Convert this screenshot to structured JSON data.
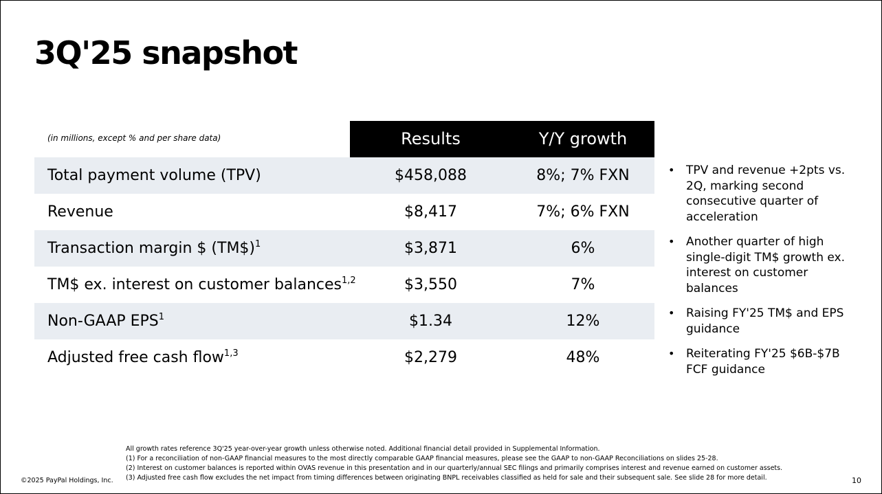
{
  "slide": {
    "title": "3Q'25 snapshot",
    "units_note": "(in millions, except % and per share data)",
    "copyright": "©2025 PayPal Holdings, Inc.",
    "page_number": "10"
  },
  "table": {
    "columns": [
      "Results",
      "Y/Y growth"
    ],
    "rows": [
      {
        "metric": "Total payment volume (TPV)",
        "sup": "",
        "result": "$458,088",
        "growth": "8%; 7% FXN"
      },
      {
        "metric": "Revenue",
        "sup": "",
        "result": "$8,417",
        "growth": "7%; 6% FXN"
      },
      {
        "metric": "Transaction margin $ (TM$)",
        "sup": "1",
        "result": "$3,871",
        "growth": "6%"
      },
      {
        "metric": "TM$ ex. interest on customer balances",
        "sup": "1,2",
        "result": "$3,550",
        "growth": "7%"
      },
      {
        "metric": "Non-GAAP EPS",
        "sup": "1",
        "result": "$1.34",
        "growth": "12%"
      },
      {
        "metric": "Adjusted free cash flow",
        "sup": "1,3",
        "result": "$2,279",
        "growth": "48%"
      }
    ]
  },
  "bullets": [
    "TPV and revenue +2pts vs. 2Q, marking second consecutive quarter of acceleration",
    "Another quarter of high single-digit TM$ growth ex. interest on customer balances",
    "Raising FY'25 TM$ and EPS guidance",
    "Reiterating FY'25 $6B-$7B FCF guidance"
  ],
  "footnotes": [
    "All growth rates reference 3Q'25 year-over-year growth unless otherwise noted. Additional financial detail provided in Supplemental Information.",
    "(1) For a reconciliation of non-GAAP financial measures to the most directly comparable GAAP financial measures, please see the GAAP to non-GAAP Reconciliations on slides 25-28.",
    "(2) Interest on customer balances is reported within OVAS revenue in this presentation and in our quarterly/annual SEC filings and primarily comprises interest and revenue earned on customer assets.",
    "(3) Adjusted free cash flow excludes the net impact from timing differences between originating BNPL receivables classified as held for sale and their subsequent sale. See slide 28 for more detail."
  ],
  "colors": {
    "header_band": "#000000",
    "shaded_row": "#e9edf2",
    "text": "#000000"
  }
}
